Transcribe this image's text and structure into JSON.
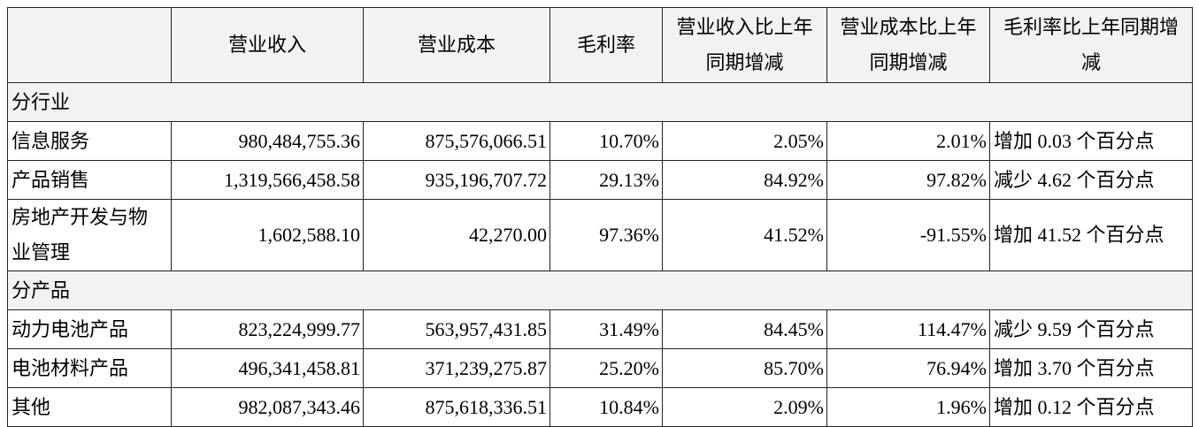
{
  "table": {
    "header": [
      "营业收入",
      "营业成本",
      "毛利率",
      "营业收入比上年同期增减",
      "营业成本比上年同期增减",
      "毛利率比上年同期增减"
    ],
    "sections": [
      {
        "title": "分行业",
        "rows": [
          [
            "信息服务",
            "980,484,755.36",
            "875,576,066.51",
            "10.70%",
            "2.05%",
            "2.01%",
            "增加 0.03 个百分点"
          ],
          [
            "产品销售",
            "1,319,566,458.58",
            "935,196,707.72",
            "29.13%",
            "84.92%",
            "97.82%",
            "减少 4.62 个百分点"
          ],
          [
            "房地产开发与物业管理",
            "1,602,588.10",
            "42,270.00",
            "97.36%",
            "41.52%",
            "-91.55%",
            "增加 41.52 个百分点"
          ]
        ]
      },
      {
        "title": "分产品",
        "rows": [
          [
            "动力电池产品",
            "823,224,999.77",
            "563,957,431.85",
            "31.49%",
            "84.45%",
            "114.47%",
            "减少 9.59 个百分点"
          ],
          [
            "电池材料产品",
            "496,341,458.81",
            "371,239,275.87",
            "25.20%",
            "85.70%",
            "76.94%",
            "增加 3.70 个百分点"
          ],
          [
            "其他",
            "982,087,343.46",
            "875,618,336.51",
            "10.84%",
            "2.09%",
            "1.96%",
            "增加 0.12 个百分点"
          ]
        ]
      }
    ]
  }
}
